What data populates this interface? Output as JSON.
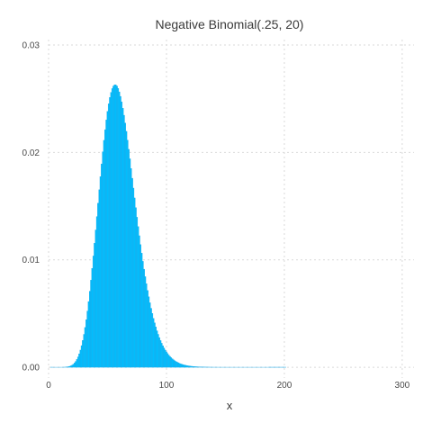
{
  "chart_data": {
    "type": "bar",
    "title": "Negative Binomial(.25, 20)",
    "xlabel": "x",
    "ylabel": "",
    "xlim": [
      0,
      310
    ],
    "ylim": [
      -0.001,
      0.0305
    ],
    "xticks": [
      0,
      100,
      200,
      300
    ],
    "xtick_labels": [
      "0",
      "100",
      "200",
      "300"
    ],
    "yticks": [
      0,
      0.01,
      0.02,
      0.03
    ],
    "ytick_labels": [
      "0.00",
      "0.01",
      "0.02",
      "0.03"
    ],
    "grid": true,
    "legend": "none",
    "bar_color": "#00bfff",
    "distribution": {
      "p": 0.25,
      "r": 20
    },
    "x_range": [
      0,
      310
    ]
  }
}
